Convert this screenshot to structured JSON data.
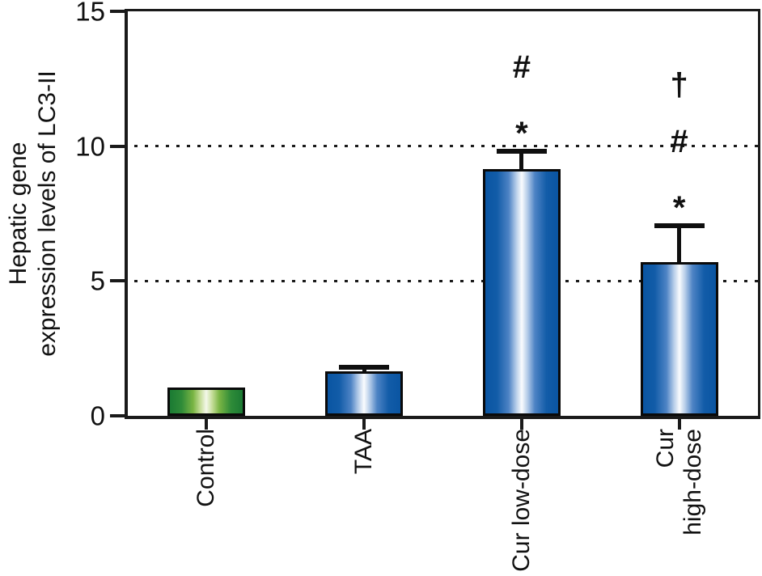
{
  "figure": {
    "ylabel_lines": [
      "Hepatic gene",
      "expression levels of LC3-II"
    ]
  },
  "chart_data": {
    "type": "bar",
    "title": "",
    "xlabel": "",
    "ylabel": "Hepatic gene expression levels of LC3-II",
    "categories": [
      "Control",
      "TAA",
      "Cur low-dose",
      "Cur high-dose"
    ],
    "category_label_lines": [
      [
        "Control"
      ],
      [
        "TAA"
      ],
      [
        "Cur low-dose"
      ],
      [
        "Cur",
        "high-dose"
      ]
    ],
    "values": [
      1.05,
      1.65,
      9.15,
      5.7
    ],
    "errors": [
      0,
      0.15,
      0.65,
      1.35
    ],
    "error_bar_style": "upper cap only",
    "significance_markers_top_down": [
      [],
      [],
      [
        "#",
        "*"
      ],
      [
        "†",
        "#",
        "*"
      ]
    ],
    "ylim": [
      0,
      15
    ],
    "yticks": [
      0,
      5,
      10,
      15
    ],
    "gridlines_y": [
      5,
      10
    ],
    "gridline_style": "dotted",
    "grid": true,
    "legend": false,
    "frame": "full box",
    "colors": {
      "axis": "#1a1a1a",
      "bar_border": "#0a0a0a",
      "green_bar_gradient": [
        [
          "#1b7a33",
          0
        ],
        [
          "#2e8b38",
          16
        ],
        [
          "#7ab544",
          32
        ],
        [
          "#c6de9a",
          42
        ],
        [
          "#f4f8ea",
          50
        ]
      ],
      "blue_bar_gradient": [
        [
          "#0a55a2",
          0
        ],
        [
          "#125ca8",
          16
        ],
        [
          "#4d83c4",
          32
        ],
        [
          "#b3cbe8",
          42
        ],
        [
          "#fafcfe",
          50
        ]
      ]
    },
    "bar_fill": [
      "green_bar_gradient",
      "blue_bar_gradient",
      "blue_bar_gradient",
      "blue_bar_gradient"
    ]
  }
}
